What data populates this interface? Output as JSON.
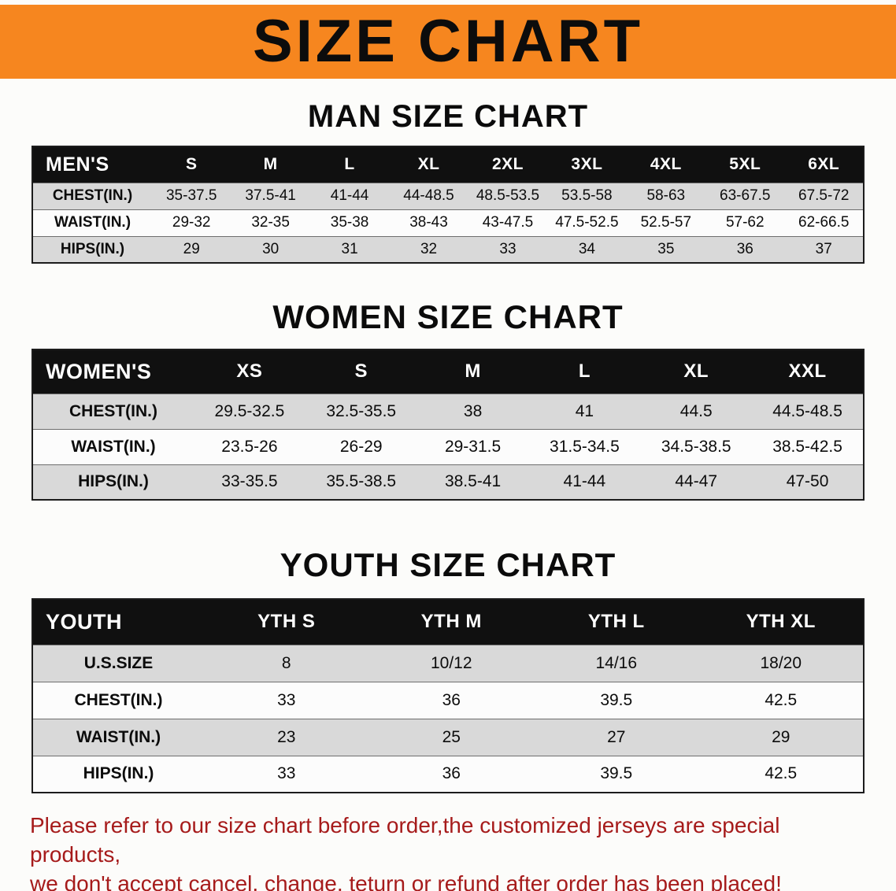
{
  "banner": {
    "title": "SIZE CHART"
  },
  "sections": [
    {
      "heading": "MAN SIZE CHART",
      "table": {
        "header": [
          "MEN'S",
          "S",
          "M",
          "L",
          "XL",
          "2XL",
          "3XL",
          "4XL",
          "5XL",
          "6XL"
        ],
        "rows": [
          [
            "CHEST(IN.)",
            "35-37.5",
            "37.5-41",
            "41-44",
            "44-48.5",
            "48.5-53.5",
            "53.5-58",
            "58-63",
            "63-67.5",
            "67.5-72"
          ],
          [
            "WAIST(IN.)",
            "29-32",
            "32-35",
            "35-38",
            "38-43",
            "43-47.5",
            "47.5-52.5",
            "52.5-57",
            "57-62",
            "62-66.5"
          ],
          [
            "HIPS(IN.)",
            "29",
            "30",
            "31",
            "32",
            "33",
            "34",
            "35",
            "36",
            "37"
          ]
        ]
      }
    },
    {
      "heading": "WOMEN SIZE CHART",
      "table": {
        "header": [
          "WOMEN'S",
          "XS",
          "S",
          "M",
          "L",
          "XL",
          "XXL"
        ],
        "rows": [
          [
            "CHEST(IN.)",
            "29.5-32.5",
            "32.5-35.5",
            "38",
            "41",
            "44.5",
            "44.5-48.5"
          ],
          [
            "WAIST(IN.)",
            "23.5-26",
            "26-29",
            "29-31.5",
            "31.5-34.5",
            "34.5-38.5",
            "38.5-42.5"
          ],
          [
            "HIPS(IN.)",
            "33-35.5",
            "35.5-38.5",
            "38.5-41",
            "41-44",
            "44-47",
            "47-50"
          ]
        ]
      }
    },
    {
      "heading": "YOUTH SIZE CHART",
      "table": {
        "header": [
          "YOUTH",
          "YTH S",
          "YTH M",
          "YTH L",
          "YTH XL"
        ],
        "rows": [
          [
            "U.S.SIZE",
            "8",
            "10/12",
            "14/16",
            "18/20"
          ],
          [
            "CHEST(IN.)",
            "33",
            "36",
            "39.5",
            "42.5"
          ],
          [
            "WAIST(IN.)",
            "23",
            "25",
            "27",
            "29"
          ],
          [
            "HIPS(IN.)",
            "33",
            "36",
            "39.5",
            "42.5"
          ]
        ]
      }
    }
  ],
  "footer_note": {
    "line1": "Please refer to our size chart before order,the customized jerseys are special products,",
    "line2": "we don't accept cancel, change, teturn or refund after order has been placed!"
  },
  "colors": {
    "banner_orange": "#F6861F",
    "table_header_black": "#101010",
    "row_gray": "#D9D9D9",
    "row_white": "#FCFCFC",
    "note_red": "#A61B1B"
  }
}
